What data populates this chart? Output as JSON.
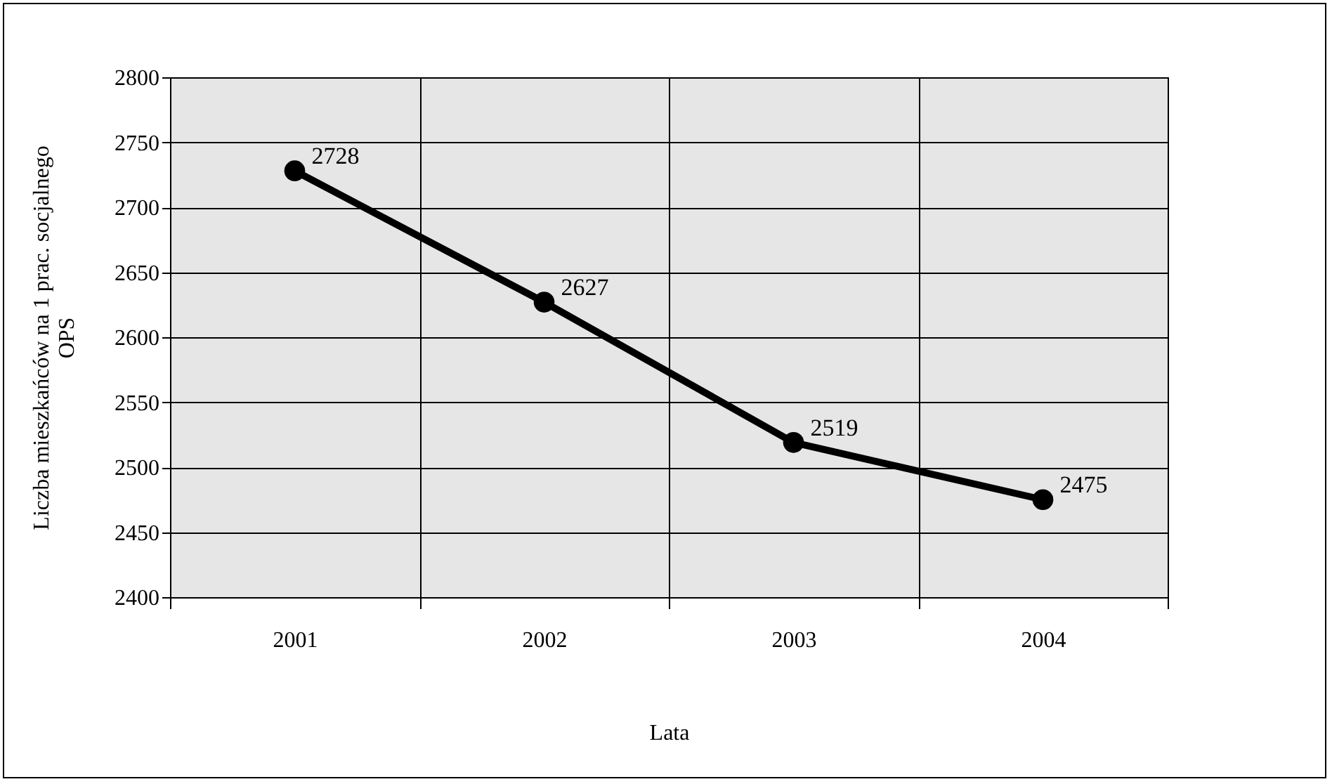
{
  "chart_data": {
    "type": "line",
    "xlabel": "Lata",
    "ylabel": "Liczba mieszkańców na 1 prac. socjalnego OPS",
    "categories": [
      "2001",
      "2002",
      "2003",
      "2004"
    ],
    "series": [
      {
        "color": "#000000",
        "values": [
          2728,
          2627,
          2519,
          2475
        ]
      }
    ],
    "ylim": [
      2400,
      2800
    ],
    "yticks": [
      2400,
      2450,
      2500,
      2550,
      2600,
      2650,
      2700,
      2750,
      2800
    ],
    "grid": true,
    "marker": "circle",
    "line_style": "solid",
    "data_labels": true
  }
}
